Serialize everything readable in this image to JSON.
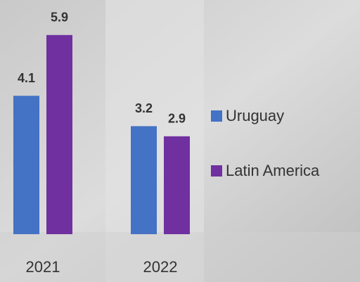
{
  "chart_data": {
    "type": "bar",
    "categories": [
      "2021",
      "2022"
    ],
    "series": [
      {
        "name": "Uruguay",
        "color": "#4472c4",
        "values": [
          4.1,
          3.2
        ]
      },
      {
        "name": "Latin America",
        "color": "#7030a0",
        "values": [
          5.9,
          2.9
        ]
      }
    ],
    "legend": "right"
  }
}
